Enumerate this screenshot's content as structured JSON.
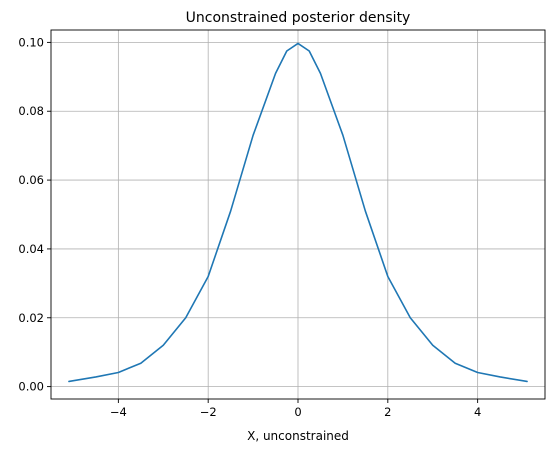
{
  "chart_data": {
    "type": "line",
    "title": "Unconstrained posterior density",
    "xlabel": "X, unconstrained",
    "ylabel": "",
    "xlim": [
      -5.5,
      5.5
    ],
    "ylim": [
      -0.0036,
      0.1036
    ],
    "grid": true,
    "x_ticks": [
      -4,
      -2,
      0,
      2,
      4
    ],
    "x_tick_labels": [
      "−4",
      "−2",
      "0",
      "2",
      "4"
    ],
    "y_ticks": [
      0.0,
      0.02,
      0.04,
      0.06,
      0.08,
      0.1
    ],
    "y_tick_labels": [
      "0.00",
      "0.02",
      "0.04",
      "0.06",
      "0.08",
      "0.10"
    ],
    "series": [
      {
        "color": "#1f77b4",
        "x": [
          -5.1,
          -4.5,
          -4.0,
          -3.5,
          -3.0,
          -2.5,
          -2.0,
          -1.5,
          -1.0,
          -0.5,
          -0.25,
          0.0,
          0.25,
          0.5,
          1.0,
          1.5,
          2.0,
          2.5,
          3.0,
          3.5,
          4.0,
          4.5,
          5.1
        ],
        "y": [
          0.0015,
          0.0028,
          0.0041,
          0.0068,
          0.012,
          0.02,
          0.032,
          0.051,
          0.073,
          0.091,
          0.0975,
          0.0997,
          0.0975,
          0.091,
          0.073,
          0.051,
          0.032,
          0.02,
          0.012,
          0.0068,
          0.0041,
          0.0028,
          0.0015
        ]
      }
    ]
  }
}
